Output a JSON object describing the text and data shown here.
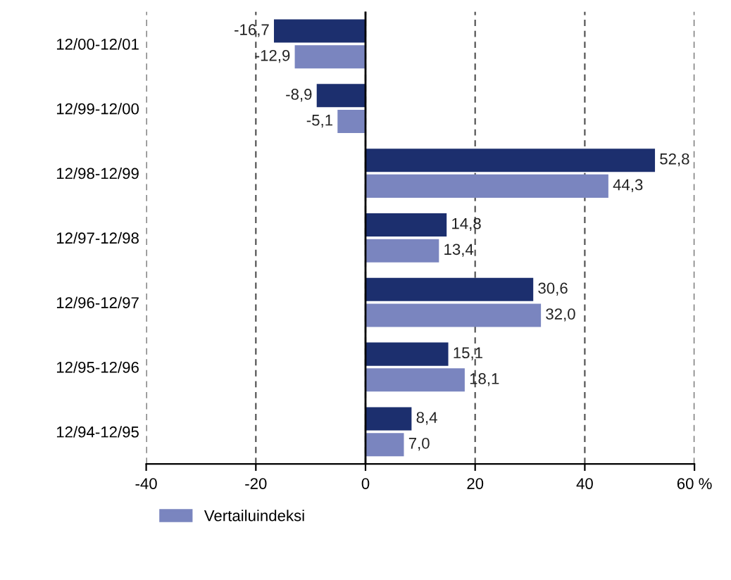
{
  "chart_data": {
    "type": "bar",
    "orientation": "horizontal",
    "categories": [
      "12/00-12/01",
      "12/99-12/00",
      "12/98-12/99",
      "12/97-12/98",
      "12/96-12/97",
      "12/95-12/96",
      "12/94-12/95"
    ],
    "series": [
      {
        "color": "#1c2f6e",
        "values": [
          -16.7,
          -8.9,
          52.8,
          14.8,
          30.6,
          15.1,
          8.4
        ],
        "value_labels": [
          "-16,7",
          "-8,9",
          "52,8",
          "14,8",
          "30,6",
          "15,1",
          "8,4"
        ]
      },
      {
        "name": "Vertailuindeksi",
        "color": "#7a85bf",
        "values": [
          -12.9,
          -5.1,
          44.3,
          13.4,
          32.0,
          18.1,
          7.0
        ],
        "value_labels": [
          "-12,9",
          "-5,1",
          "44,3",
          "13,4",
          "32,0",
          "18,1",
          "7,0"
        ]
      }
    ],
    "xlim": [
      -40,
      60
    ],
    "xticks": [
      -40,
      -20,
      0,
      20,
      40,
      {
        "value": 60,
        "label": "60 %"
      }
    ],
    "grid": "x",
    "legend": "bottom"
  }
}
